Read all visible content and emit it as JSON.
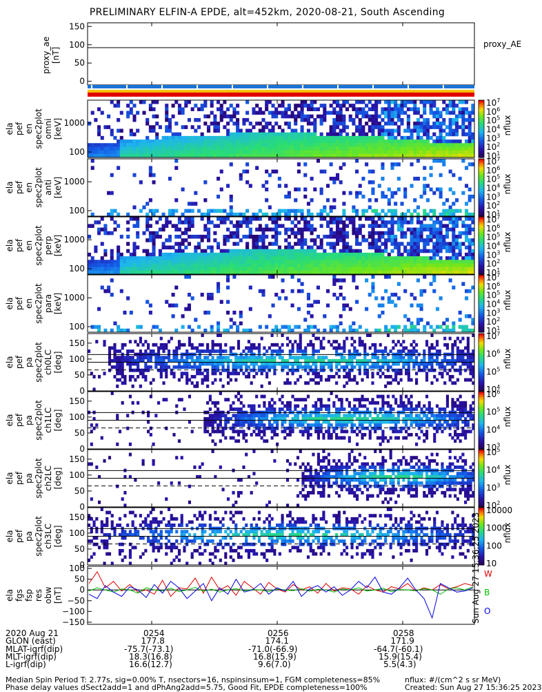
{
  "title": "PRELIMINARY ELFIN-A EPDE, alt=452km, 2020-08-21, South Ascending",
  "chart_data": [
    {
      "type": "line",
      "panel": "proxy_ae",
      "ylabel": [
        "proxy_ae",
        "[nT]"
      ],
      "legend": "proxy_AE",
      "ylim": [
        -10,
        160
      ],
      "yticks": [
        "150",
        "100",
        "50",
        "0"
      ],
      "series": [
        {
          "name": "proxy_AE",
          "values": [
            92,
            92
          ]
        }
      ]
    },
    {
      "type": "heatmap",
      "panel": "ela_pef_en_spec2plot_omni",
      "ylabel": [
        "ela",
        "pef",
        "en",
        "spec2plot",
        "omni",
        "[keV]"
      ],
      "yscale": "log",
      "yticks": [
        "1000",
        "100"
      ],
      "zlabel": "nflux",
      "zticks": [
        "10^7",
        "10^6",
        "10^5",
        "10^4",
        "10^3",
        "10^2",
        "10^1"
      ]
    },
    {
      "type": "heatmap",
      "panel": "ela_pef_en_spec2plot_anti",
      "ylabel": [
        "ela",
        "pef",
        "en",
        "spec2plot",
        "anti",
        "[keV]"
      ],
      "yscale": "log",
      "yticks": [
        "1000",
        "100"
      ],
      "zlabel": "nflux",
      "zticks": [
        "10^7",
        "10^6",
        "10^5",
        "10^4",
        "10^3",
        "10^2",
        "10^1"
      ]
    },
    {
      "type": "heatmap",
      "panel": "ela_pef_en_spec2plot_perp",
      "ylabel": [
        "ela",
        "pef",
        "en",
        "spec2plot",
        "perp",
        "[keV]"
      ],
      "yscale": "log",
      "yticks": [
        "1000",
        "100"
      ],
      "zlabel": "nflux",
      "zticks": [
        "10^7",
        "10^6",
        "10^5",
        "10^4",
        "10^3",
        "10^2",
        "10^1"
      ]
    },
    {
      "type": "heatmap",
      "panel": "ela_pef_en_spec2plot_para",
      "ylabel": [
        "ela",
        "pef",
        "en",
        "spec2plot",
        "para",
        "[keV]"
      ],
      "yscale": "log",
      "yticks": [
        "1000",
        "100"
      ],
      "zlabel": "nflux",
      "zticks": [
        "10^7",
        "10^6",
        "10^5",
        "10^4",
        "10^3",
        "10^2",
        "10^1"
      ]
    },
    {
      "type": "heatmap",
      "panel": "ela_pef_pa_spec2plot_ch0LC",
      "ylabel": [
        "ela",
        "pef",
        "pa",
        "spec2plot",
        "ch0LC",
        "[deg]"
      ],
      "ylim": [
        0,
        180
      ],
      "yticks": [
        "150",
        "100",
        "50",
        "0"
      ],
      "zlabel": "nflux",
      "zticks": [
        "10^7",
        "10^6",
        "10^5",
        "10^4"
      ]
    },
    {
      "type": "heatmap",
      "panel": "ela_pef_pa_spec2plot_ch1LC",
      "ylabel": [
        "ela",
        "pef",
        "pa",
        "spec2plot",
        "ch1LC",
        "[deg]"
      ],
      "ylim": [
        0,
        180
      ],
      "yticks": [
        "150",
        "100",
        "50",
        "0"
      ],
      "zlabel": "nflux",
      "zticks": [
        "10^6",
        "10^5",
        "10^4",
        "10^3"
      ]
    },
    {
      "type": "heatmap",
      "panel": "ela_pef_pa_spec2plot_ch2LC",
      "ylabel": [
        "ela",
        "pef",
        "pa",
        "spec2plot",
        "ch2LC",
        "[deg]"
      ],
      "ylim": [
        0,
        180
      ],
      "yticks": [
        "150",
        "100",
        "50",
        "0"
      ],
      "zlabel": "nflux",
      "zticks": [
        "10^5",
        "10^4",
        "10^3",
        "10^2"
      ]
    },
    {
      "type": "heatmap",
      "panel": "ela_pef_pa_spec2plot_ch3LC",
      "ylabel": [
        "ela",
        "pef",
        "pa",
        "spec2plot",
        "ch3LC",
        "[deg]"
      ],
      "ylim": [
        0,
        180
      ],
      "yticks": [
        "150",
        "100",
        "50",
        "0"
      ],
      "zlabel": "nflux",
      "zticks": [
        "10000",
        "1000",
        "100",
        "10"
      ]
    },
    {
      "type": "line",
      "panel": "ela_fgs_fsp_res_obw",
      "ylabel": [
        "ela",
        "fgs",
        "fsp",
        "res",
        "obw",
        "[nT]"
      ],
      "ylim": [
        -160,
        110
      ],
      "yticks": [
        "100",
        "50",
        "0",
        "−50",
        "−100",
        "−150"
      ],
      "series": [
        {
          "name": "W",
          "values": [
            30,
            85,
            10,
            40,
            -5,
            25,
            -10,
            0,
            -20,
            45,
            -30,
            10,
            5,
            55,
            -15,
            60,
            0,
            20,
            -25,
            40,
            10,
            -20,
            35,
            5,
            -10,
            25,
            0,
            15,
            -15,
            30,
            -5,
            10,
            5,
            -20,
            20,
            0,
            -10,
            15,
            5,
            30,
            -5,
            10,
            0,
            25,
            5,
            15,
            30,
            20
          ]
        },
        {
          "name": "B",
          "values": [
            -5,
            10,
            0,
            -10,
            5,
            0,
            -15,
            10,
            0,
            -5,
            8,
            -8,
            0,
            12,
            -6,
            4,
            -10,
            0,
            6,
            -4,
            2,
            0,
            -8,
            5,
            0,
            -3,
            6,
            -6,
            3,
            0,
            -10,
            5,
            0,
            10,
            -5,
            0,
            8,
            -8,
            2,
            0,
            -4,
            6,
            0,
            -20,
            5,
            10,
            0,
            15
          ]
        },
        {
          "name": "O",
          "values": [
            -20,
            -40,
            20,
            -10,
            -30,
            15,
            0,
            -35,
            25,
            -15,
            40,
            10,
            -40,
            -5,
            30,
            -50,
            10,
            -20,
            50,
            -10,
            0,
            30,
            -20,
            10,
            -5,
            40,
            -30,
            5,
            20,
            -10,
            15,
            -25,
            0,
            40,
            10,
            60,
            -10,
            -20,
            10,
            55,
            0,
            -40,
            -130,
            30,
            10,
            -10,
            -5,
            10
          ]
        }
      ]
    }
  ],
  "stamp": "Sun Aug 27 15:36:25 2023",
  "ephemeris": {
    "rows": [
      {
        "label": "2020 Aug 21",
        "vals": [
          "0254",
          "0256",
          "0258"
        ]
      },
      {
        "label": "GLON (east)",
        "vals": [
          "177.8",
          "174.1",
          "171.9"
        ]
      },
      {
        "label": "MLAT-igrf(dip)",
        "vals": [
          "-75.7(-73.1)",
          "-71.0(-66.9)",
          "-64.7(-60.1)"
        ]
      },
      {
        "label": "MLT-igrf(dip)",
        "vals": [
          "18.3(16.8)",
          "16.8(15.9)",
          "15.9(15.4)"
        ]
      },
      {
        "label": "L-igrf(dip)",
        "vals": [
          "16.6(12.7)",
          "9.6(7.0)",
          "5.5(4.3)"
        ]
      }
    ]
  },
  "footer": {
    "left1": "Median Spin Period T: 2.77s, sig=0.00% T, nsectors=16, nspinsinsum=1, FGM completeness=85%",
    "left2": "Phase delay values dSect2add=1 and dPhAng2add=5.75, Good Fit, EPDE completeness=100%",
    "right1": "nflux: #/(cm^2 s sr MeV)",
    "right2": "Created: Sun Aug 27 15:36:25 2023"
  }
}
